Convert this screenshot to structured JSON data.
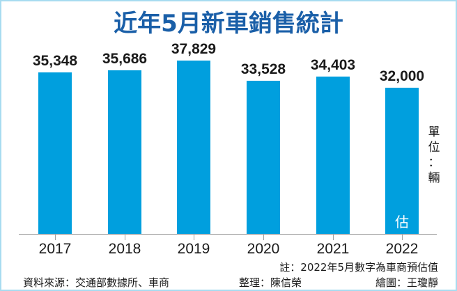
{
  "header": {
    "title": "近年5月新車銷售統計"
  },
  "chart_data": {
    "type": "bar",
    "title": "近年5月新車銷售統計",
    "categories": [
      "2017",
      "2018",
      "2019",
      "2020",
      "2021",
      "2022"
    ],
    "values": [
      35348,
      35686,
      37829,
      33528,
      34403,
      32000
    ],
    "value_labels": [
      "35,348",
      "35,686",
      "37,829",
      "33,528",
      "34,403",
      "32,000"
    ],
    "xlabel": "",
    "ylabel": "單位：輛",
    "bar_color": "#009fde",
    "grid": false,
    "annotations": [
      {
        "category": "2022",
        "text": "估"
      }
    ]
  },
  "unit": {
    "line1": "單",
    "line2": "位",
    "line3": "：",
    "line4": "輛"
  },
  "estimate_mark": "估",
  "note": "註：2022年5月數字為車商預估值",
  "footer": {
    "source": "資料來源：交通部數據所、車商",
    "editor": "整理：陳信榮",
    "illustrator": "繪圖：王瓊靜"
  },
  "colors": {
    "title": "#1a5fa8",
    "bar": "#009fde",
    "border": "#a8dcf0"
  }
}
